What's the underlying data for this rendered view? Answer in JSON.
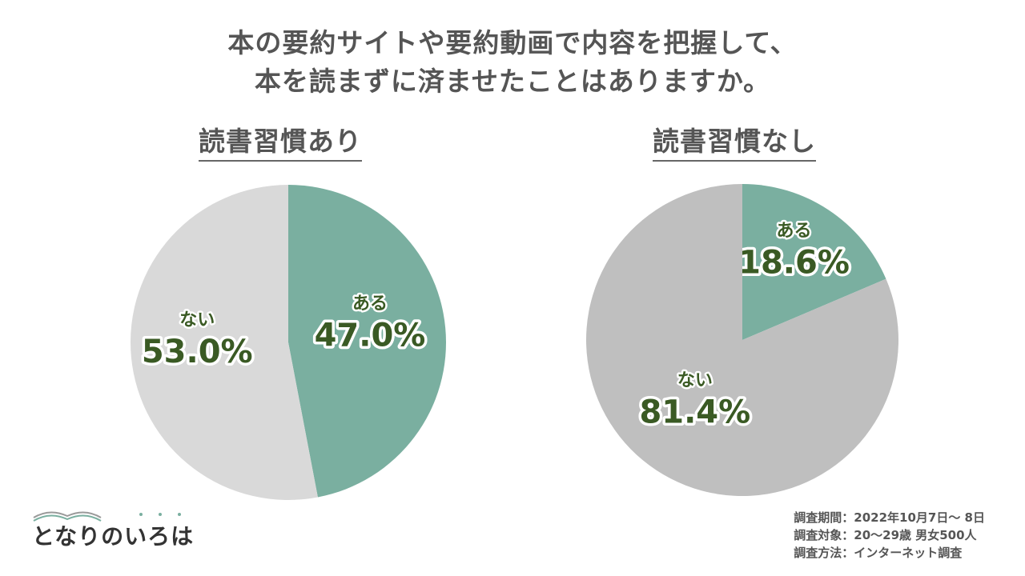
{
  "title": {
    "line1": "本の要約サイトや要約動画で内容を把握して、",
    "line2": "本を読まずに済ませたことはありますか。"
  },
  "chart_data": [
    {
      "type": "pie",
      "title": "読書習慣あり",
      "slices": [
        {
          "label": "ある",
          "value": 47.0,
          "display": "47.0%",
          "color": "#7aafa0"
        },
        {
          "label": "ない",
          "value": 53.0,
          "display": "53.0%",
          "color": "#d9d9d9"
        }
      ]
    },
    {
      "type": "pie",
      "title": "読書習慣なし",
      "slices": [
        {
          "label": "ある",
          "value": 18.6,
          "display": "18.6%",
          "color": "#7aafa0"
        },
        {
          "label": "ない",
          "value": 81.4,
          "display": "81.4%",
          "color": "#bfbfbf"
        }
      ]
    }
  ],
  "survey": {
    "period": "調査期間：2022年10月7日～ 8日",
    "target": "調査対象：20～29歳 男女500人",
    "method": "調査方法：インターネット調査"
  },
  "logo": {
    "text": "となりのいろは"
  }
}
